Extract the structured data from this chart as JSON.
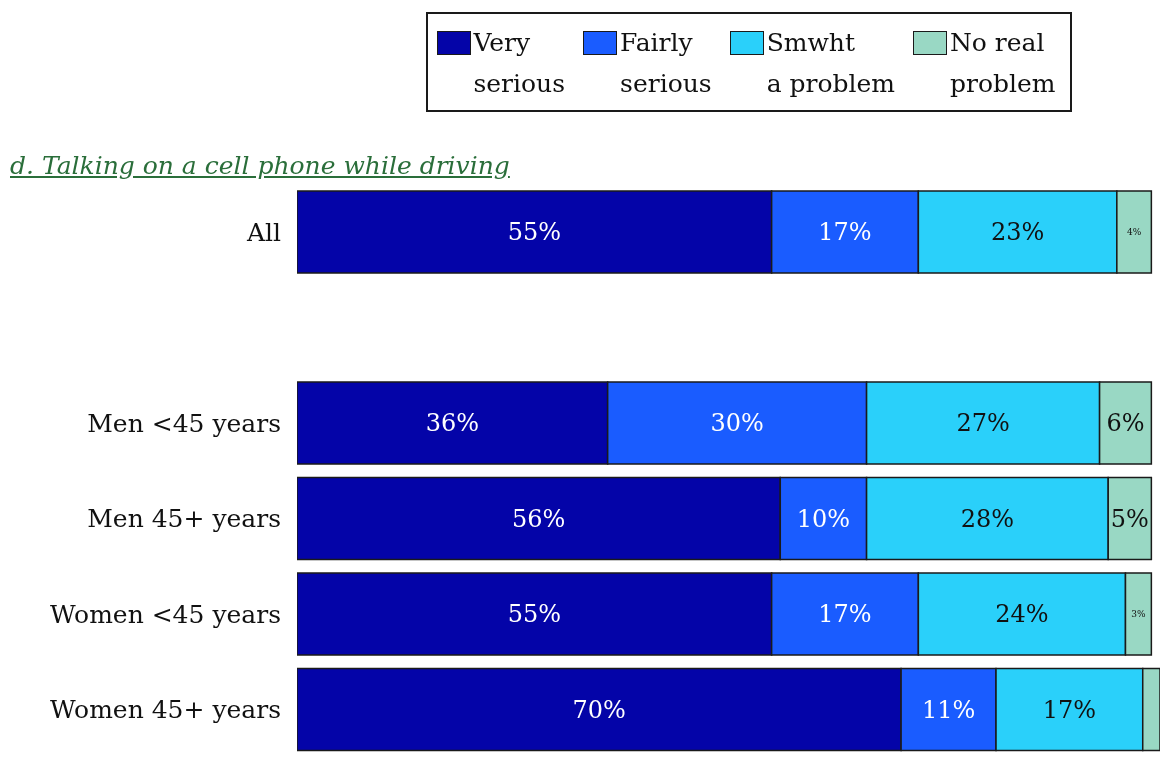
{
  "chart_data": {
    "type": "bar",
    "orientation": "horizontal",
    "stacked": true,
    "title": "d. Talking on a cell phone while driving",
    "categories": [
      "All",
      null,
      "Men <45 years",
      "Men 45+ years",
      "Women <45 years",
      "Women 45+ years"
    ],
    "series": [
      {
        "name": "Very\nserious",
        "color": "#0404a8",
        "values": [
          55,
          null,
          36,
          56,
          55,
          70
        ],
        "value_labels": [
          "55%",
          null,
          "36%",
          "56%",
          "55%",
          "70%"
        ]
      },
      {
        "name": "Fairly\nserious",
        "color": "#1a5cff",
        "values": [
          17,
          null,
          30,
          10,
          17,
          11
        ],
        "value_labels": [
          "17%",
          null,
          "30%",
          "10%",
          "17%",
          "11%"
        ]
      },
      {
        "name": "Smwht\na problem",
        "color": "#2ad0fa",
        "values": [
          23,
          null,
          27,
          28,
          24,
          17
        ],
        "value_labels": [
          "23%",
          null,
          "27%",
          "28%",
          "24%",
          "17%"
        ]
      },
      {
        "name": "No real\nproblem",
        "color": "#99d8c4",
        "values": [
          4,
          null,
          6,
          5,
          3,
          2
        ],
        "value_labels": [
          "4%",
          null,
          "6%",
          "5%",
          "3%",
          null
        ]
      }
    ],
    "legend": "top",
    "tick_labels": "y"
  }
}
